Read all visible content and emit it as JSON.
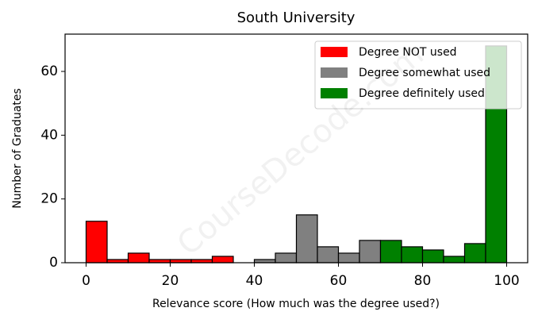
{
  "chart_data": {
    "type": "histogram",
    "title": "South University",
    "x_label": "Relevance score (How much was the degree used?)",
    "y_label": "Number of Graduates",
    "watermark": "CourseDecode.com",
    "series": [
      {
        "name": "Degree NOT used",
        "color": "#ff0000",
        "bins": [
          0,
          5,
          10,
          15,
          20,
          25,
          30,
          35
        ],
        "values": [
          13,
          1,
          3,
          1,
          1,
          1,
          2
        ]
      },
      {
        "name": "Degree somewhat used",
        "color": "#808080",
        "bins": [
          40,
          45,
          50,
          55,
          60,
          65,
          70
        ],
        "values": [
          1,
          3,
          15,
          5,
          3,
          7
        ]
      },
      {
        "name": "Degree definitely used",
        "color": "#008000",
        "bins": [
          70,
          75,
          80,
          85,
          90,
          95,
          100
        ],
        "values": [
          7,
          5,
          4,
          2,
          6,
          68
        ]
      }
    ],
    "xlim": [
      -5,
      105
    ],
    "ylim": [
      0,
      71.7
    ],
    "xticks": [
      0,
      20,
      40,
      60,
      80,
      100
    ],
    "yticks": [
      0,
      20,
      40,
      60
    ],
    "legend": "upper right",
    "grid": false
  }
}
